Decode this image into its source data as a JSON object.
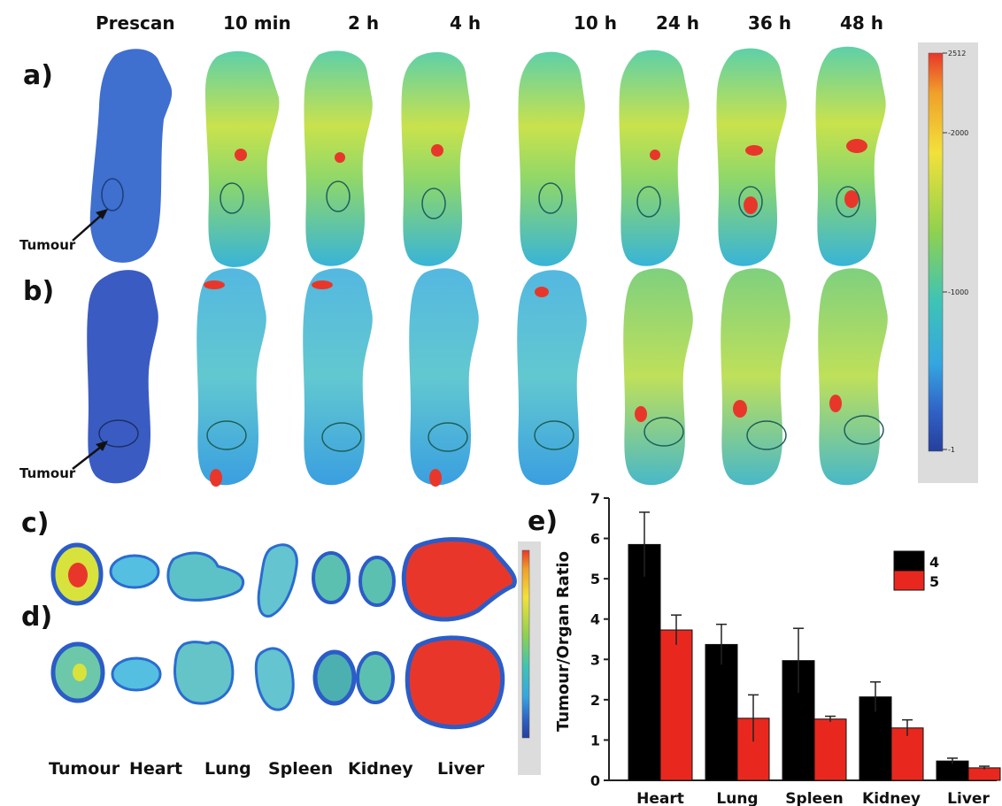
{
  "time_points": [
    "Prescan",
    "10 min",
    "2 h",
    "4 h",
    "10 h",
    "24 h",
    "36 h",
    "48 h"
  ],
  "panel_labels": {
    "a": "a)",
    "b": "b)",
    "c": "c)",
    "d": "d)",
    "e": "e)"
  },
  "tumour_label": "Tumour",
  "organ_labels": [
    "Tumour",
    "Heart",
    "Lung",
    "Spleen",
    "Kidney",
    "Liver"
  ],
  "colorbar": {
    "ticks": [
      "2512",
      "2000",
      "1000",
      "1"
    ],
    "colors": [
      "#e8372a",
      "#f0a02a",
      "#f2e13a",
      "#8fd14f",
      "#3fc4b4",
      "#35a6e0",
      "#2f62c6",
      "#263f9c"
    ]
  },
  "chart_data": {
    "type": "bar",
    "categories": [
      "Heart",
      "Lung",
      "Spleen",
      "Kidney",
      "Liver"
    ],
    "series": [
      {
        "name": "4",
        "color": "#000000",
        "values": [
          5.85,
          3.37,
          2.97,
          2.07,
          0.48
        ],
        "errors": [
          0.8,
          0.5,
          0.8,
          0.37,
          0.07
        ]
      },
      {
        "name": "5",
        "color": "#e8281e",
        "values": [
          3.73,
          1.54,
          1.52,
          1.3,
          0.31
        ],
        "errors": [
          0.37,
          0.58,
          0.07,
          0.2,
          0.04
        ]
      }
    ],
    "ylabel": "Tumour/Organ Ratio",
    "ylim": [
      0,
      7
    ],
    "yticks": [
      0,
      1,
      2,
      3,
      4,
      5,
      6,
      7
    ],
    "legend_position": "top-right"
  }
}
